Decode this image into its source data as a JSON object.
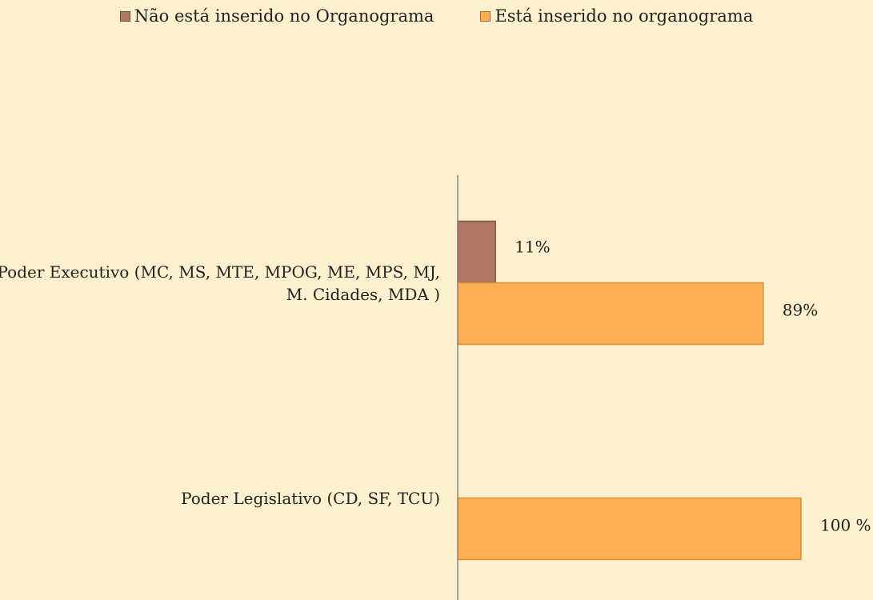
{
  "chart_data": {
    "type": "hbar",
    "categories": [
      "Poder Executivo (MC, MS, MTE, MPOG, ME, MPS, MJ, M. Cidades, MDA )",
      "Poder Legislativo (CD, SF, TCU)"
    ],
    "series": [
      {
        "name": "Não está inserido no Organograma",
        "color": "#b07762",
        "values": [
          11,
          null
        ],
        "value_labels": [
          "11%",
          null
        ]
      },
      {
        "name": "Está inserido no organograma",
        "color": "#fbae52",
        "values": [
          89,
          100
        ],
        "value_labels": [
          "89%",
          "100 %"
        ]
      }
    ],
    "xlim": [
      0,
      100
    ],
    "legend": "top"
  }
}
